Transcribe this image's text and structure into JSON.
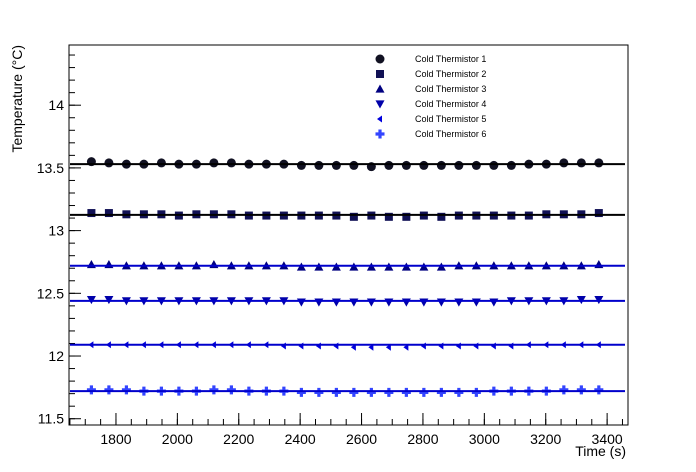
{
  "chart_data": {
    "type": "scatter",
    "x_label": "Time (s)",
    "y_label": "Temperature (°C)",
    "xlim": [
      1647,
      3468
    ],
    "ylim": [
      11.45,
      14.48
    ],
    "xticks": [
      1800,
      2000,
      2200,
      2400,
      2600,
      2800,
      3000,
      3200,
      3400
    ],
    "yticks": [
      11.5,
      12,
      12.5,
      13,
      13.5,
      14
    ],
    "legend": "top-right",
    "x": [
      1720,
      1777,
      1834,
      1891,
      1948,
      2005,
      2062,
      2119,
      2176,
      2233,
      2290,
      2347,
      2404,
      2461,
      2518,
      2575,
      2632,
      2689,
      2746,
      2803,
      2860,
      2917,
      2974,
      3031,
      3088,
      3145,
      3202,
      3259,
      3316,
      3373
    ],
    "series": [
      {
        "name": "Cold Thermistor 1",
        "color": "#111122",
        "marker": "circle",
        "fit": 13.53,
        "values": [
          13.55,
          13.54,
          13.53,
          13.53,
          13.54,
          13.53,
          13.53,
          13.54,
          13.54,
          13.53,
          13.53,
          13.53,
          13.52,
          13.52,
          13.52,
          13.52,
          13.51,
          13.52,
          13.52,
          13.52,
          13.52,
          13.52,
          13.52,
          13.52,
          13.52,
          13.53,
          13.53,
          13.54,
          13.54,
          13.54
        ]
      },
      {
        "name": "Cold Thermistor 2",
        "color": "#111155",
        "marker": "square",
        "fit": 13.125,
        "values": [
          13.14,
          13.14,
          13.13,
          13.13,
          13.13,
          13.12,
          13.13,
          13.13,
          13.13,
          13.12,
          13.12,
          13.12,
          13.12,
          13.12,
          13.12,
          13.11,
          13.12,
          13.11,
          13.11,
          13.12,
          13.11,
          13.12,
          13.12,
          13.12,
          13.12,
          13.12,
          13.13,
          13.13,
          13.13,
          13.14
        ]
      },
      {
        "name": "Cold Thermistor 3",
        "color": "#000080",
        "marker": "triangle-up",
        "fit": 12.72,
        "values": [
          12.73,
          12.73,
          12.72,
          12.72,
          12.72,
          12.72,
          12.72,
          12.73,
          12.72,
          12.72,
          12.72,
          12.72,
          12.71,
          12.71,
          12.71,
          12.71,
          12.71,
          12.71,
          12.71,
          12.71,
          12.71,
          12.72,
          12.72,
          12.72,
          12.72,
          12.72,
          12.72,
          12.72,
          12.72,
          12.73
        ]
      },
      {
        "name": "Cold Thermistor 4",
        "color": "#0000aa",
        "marker": "triangle-down",
        "fit": 12.44,
        "values": [
          12.45,
          12.45,
          12.44,
          12.44,
          12.44,
          12.44,
          12.44,
          12.44,
          12.44,
          12.44,
          12.44,
          12.44,
          12.43,
          12.43,
          12.43,
          12.43,
          12.43,
          12.43,
          12.43,
          12.43,
          12.43,
          12.43,
          12.43,
          12.43,
          12.44,
          12.44,
          12.44,
          12.44,
          12.45,
          12.45
        ]
      },
      {
        "name": "Cold Thermistor 5",
        "color": "#0000dd",
        "marker": "triangle-left",
        "fit": 12.09,
        "values": [
          12.09,
          12.09,
          12.09,
          12.09,
          12.09,
          12.09,
          12.09,
          12.09,
          12.09,
          12.09,
          12.09,
          12.08,
          12.08,
          12.08,
          12.08,
          12.07,
          12.07,
          12.07,
          12.07,
          12.08,
          12.08,
          12.08,
          12.08,
          12.08,
          12.08,
          12.09,
          12.09,
          12.09,
          12.09,
          12.09
        ]
      },
      {
        "name": "Cold Thermistor 6",
        "color": "#3344ff",
        "marker": "cross",
        "fit": 11.72,
        "values": [
          11.73,
          11.73,
          11.73,
          11.72,
          11.72,
          11.72,
          11.72,
          11.73,
          11.73,
          11.72,
          11.72,
          11.72,
          11.71,
          11.71,
          11.71,
          11.71,
          11.71,
          11.71,
          11.71,
          11.71,
          11.71,
          11.71,
          11.71,
          11.72,
          11.72,
          11.72,
          11.72,
          11.73,
          11.73,
          11.73
        ]
      }
    ]
  }
}
